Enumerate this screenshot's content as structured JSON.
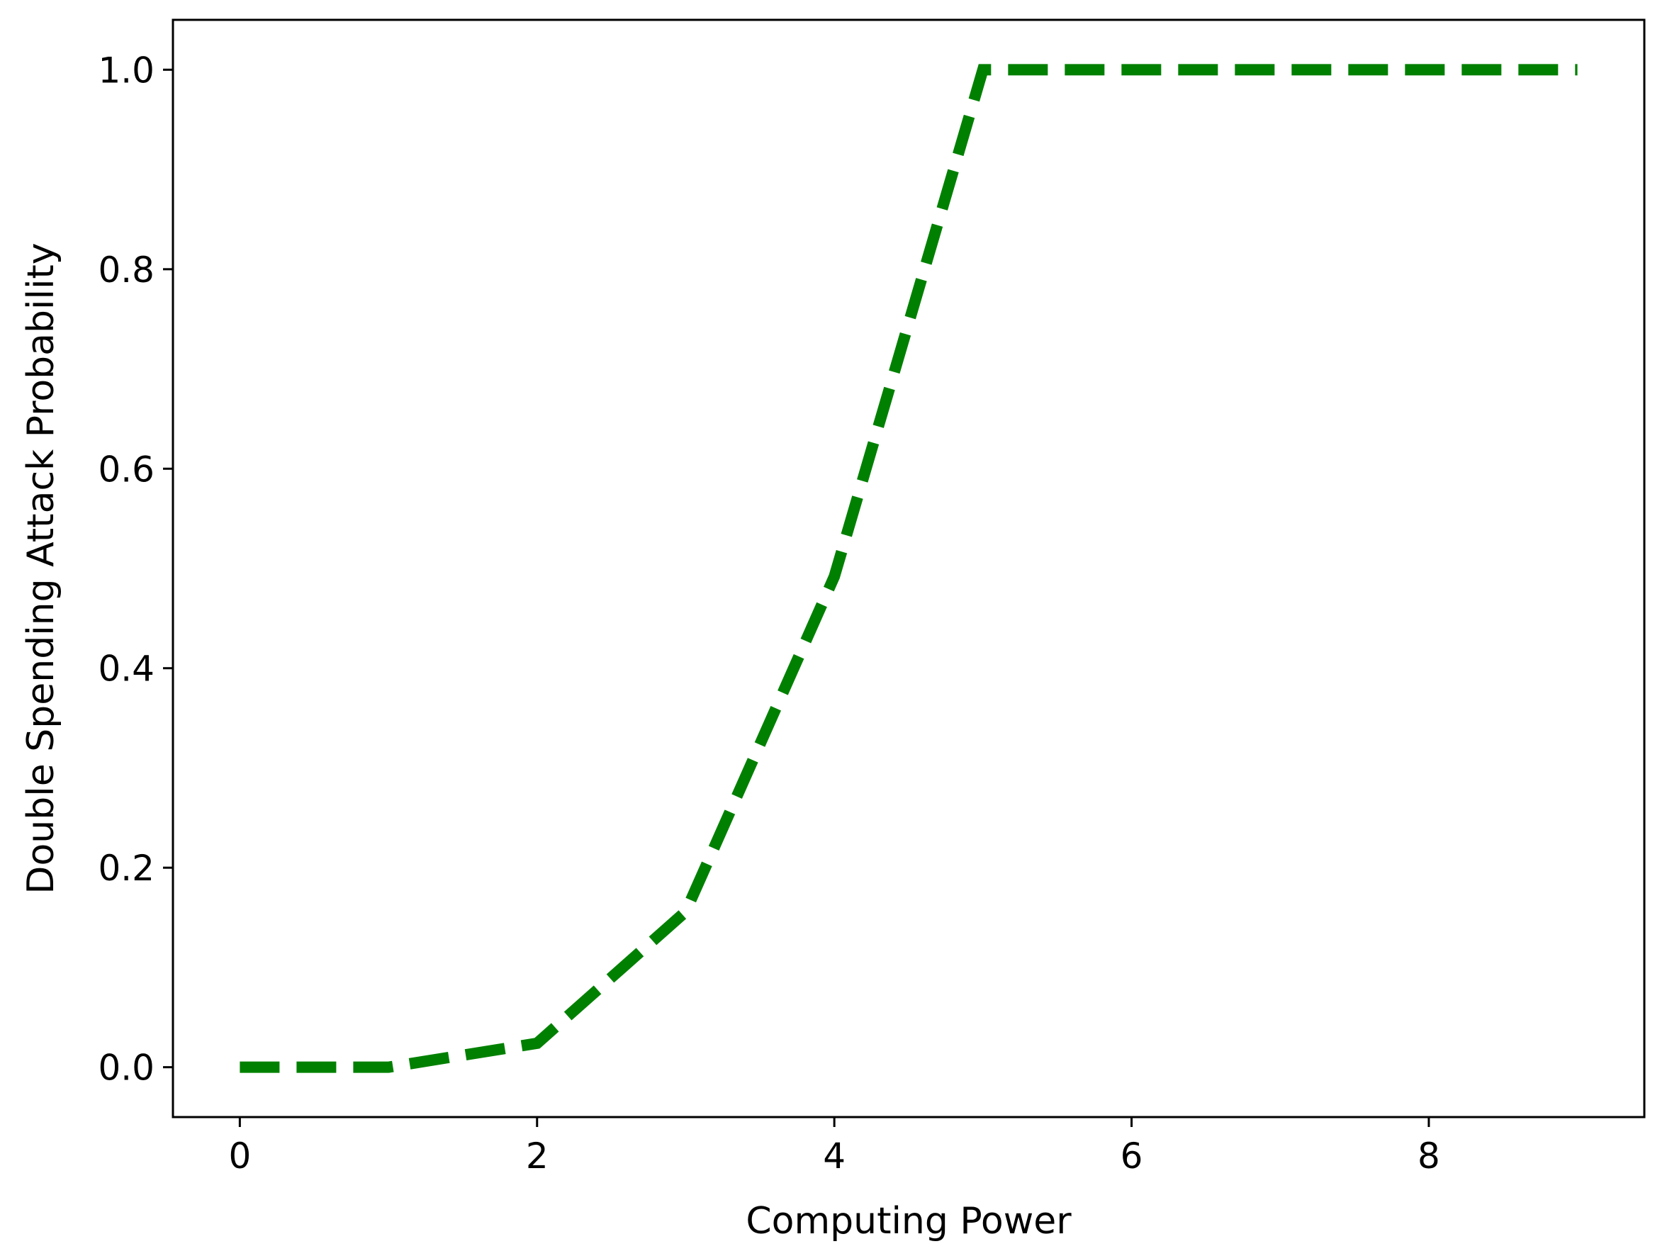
{
  "chart_data": {
    "type": "line",
    "title": "",
    "xlabel": "Computing Power",
    "ylabel": "Double Spending Attack Probability",
    "xlim": [
      -0.45,
      9.45
    ],
    "ylim": [
      -0.05,
      1.05
    ],
    "x_ticks": [
      0,
      2,
      4,
      6,
      8
    ],
    "x_tick_labels": [
      "0",
      "2",
      "4",
      "6",
      "8"
    ],
    "y_ticks": [
      0.0,
      0.2,
      0.4,
      0.6,
      0.8,
      1.0
    ],
    "y_tick_labels": [
      "0.0",
      "0.2",
      "0.4",
      "0.6",
      "0.8",
      "1.0"
    ],
    "grid": false,
    "legend": "none",
    "series": [
      {
        "color": "#008000",
        "line_style": "dashed",
        "x": [
          0,
          1,
          2,
          3,
          4,
          5,
          6,
          7,
          8,
          9
        ],
        "y": [
          0.0,
          0.0,
          0.024,
          0.156,
          0.492,
          1.0,
          1.0,
          1.0,
          1.0,
          1.0
        ]
      }
    ]
  }
}
